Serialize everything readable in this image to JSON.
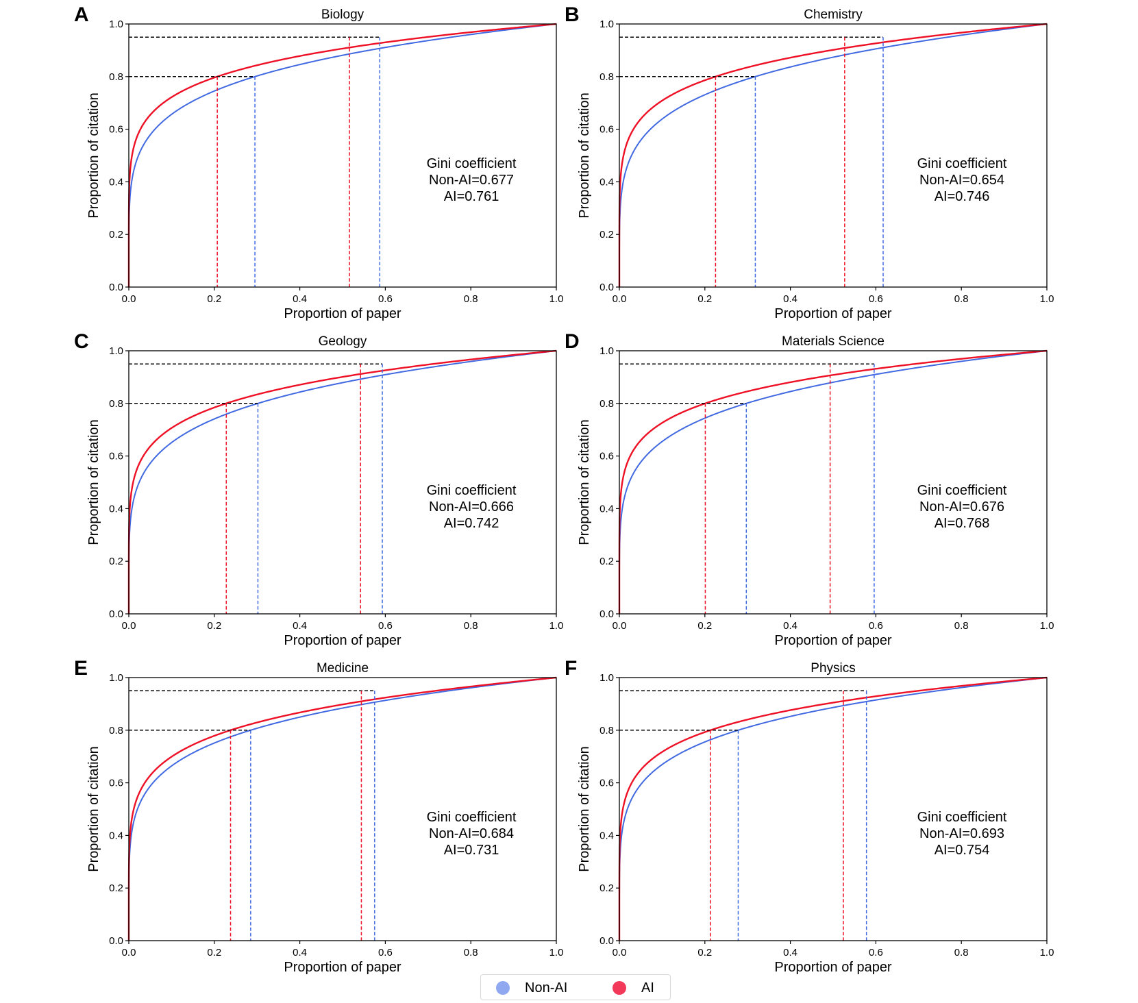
{
  "colors": {
    "non_ai": "#4169e1",
    "ai": "#ee1126",
    "guide": "#000000",
    "legend_non_ai": "#8fa8f0",
    "legend_ai": "#f2395a"
  },
  "legend": {
    "non_ai_label": "Non-AI",
    "ai_label": "AI"
  },
  "chart_data": [
    {
      "type": "line",
      "panel": "A",
      "title": "Biology",
      "xlabel": "Proportion of paper",
      "ylabel": "Proportion of citation",
      "xlim": [
        0,
        1
      ],
      "ylim": [
        0,
        1
      ],
      "xticks": [
        "0.0",
        "0.2",
        "0.4",
        "0.6",
        "0.8",
        "1.0"
      ],
      "yticks": [
        "0.0",
        "0.2",
        "0.4",
        "0.6",
        "0.8",
        "1.0"
      ],
      "gini_label": "Gini coefficient",
      "gini_non_ai": "Non-AI=0.677",
      "gini_ai": "AI=0.761",
      "series": [
        {
          "name": "Non-AI",
          "x80": 0.295,
          "x95": 0.587
        },
        {
          "name": "AI",
          "x80": 0.207,
          "x95": 0.516
        }
      ]
    },
    {
      "type": "line",
      "panel": "B",
      "title": "Chemistry",
      "xlabel": "Proportion of paper",
      "ylabel": "Proportion of citation",
      "xlim": [
        0,
        1
      ],
      "ylim": [
        0,
        1
      ],
      "xticks": [
        "0.0",
        "0.2",
        "0.4",
        "0.6",
        "0.8",
        "1.0"
      ],
      "yticks": [
        "0.0",
        "0.2",
        "0.4",
        "0.6",
        "0.8",
        "1.0"
      ],
      "gini_label": "Gini coefficient",
      "gini_non_ai": "Non-AI=0.654",
      "gini_ai": "AI=0.746",
      "series": [
        {
          "name": "Non-AI",
          "x80": 0.318,
          "x95": 0.617
        },
        {
          "name": "AI",
          "x80": 0.225,
          "x95": 0.527
        }
      ]
    },
    {
      "type": "line",
      "panel": "C",
      "title": "Geology",
      "xlabel": "Proportion of paper",
      "ylabel": "Proportion of citation",
      "xlim": [
        0,
        1
      ],
      "ylim": [
        0,
        1
      ],
      "xticks": [
        "0.0",
        "0.2",
        "0.4",
        "0.6",
        "0.8",
        "1.0"
      ],
      "yticks": [
        "0.0",
        "0.2",
        "0.4",
        "0.6",
        "0.8",
        "1.0"
      ],
      "gini_label": "Gini coefficient",
      "gini_non_ai": "Non-AI=0.666",
      "gini_ai": "AI=0.742",
      "series": [
        {
          "name": "Non-AI",
          "x80": 0.302,
          "x95": 0.593
        },
        {
          "name": "AI",
          "x80": 0.228,
          "x95": 0.542
        }
      ]
    },
    {
      "type": "line",
      "panel": "D",
      "title": "Materials Science",
      "xlabel": "Proportion of paper",
      "ylabel": "Proportion of citation",
      "xlim": [
        0,
        1
      ],
      "ylim": [
        0,
        1
      ],
      "xticks": [
        "0.0",
        "0.2",
        "0.4",
        "0.6",
        "0.8",
        "1.0"
      ],
      "yticks": [
        "0.0",
        "0.2",
        "0.4",
        "0.6",
        "0.8",
        "1.0"
      ],
      "gini_label": "Gini coefficient",
      "gini_non_ai": "Non-AI=0.676",
      "gini_ai": "AI=0.768",
      "series": [
        {
          "name": "Non-AI",
          "x80": 0.297,
          "x95": 0.596
        },
        {
          "name": "AI",
          "x80": 0.201,
          "x95": 0.493
        }
      ]
    },
    {
      "type": "line",
      "panel": "E",
      "title": "Medicine",
      "xlabel": "Proportion of paper",
      "ylabel": "Proportion of citation",
      "xlim": [
        0,
        1
      ],
      "ylim": [
        0,
        1
      ],
      "xticks": [
        "0.0",
        "0.2",
        "0.4",
        "0.6",
        "0.8",
        "1.0"
      ],
      "yticks": [
        "0.0",
        "0.2",
        "0.4",
        "0.6",
        "0.8",
        "1.0"
      ],
      "gini_label": "Gini coefficient",
      "gini_non_ai": "Non-AI=0.684",
      "gini_ai": "AI=0.731",
      "series": [
        {
          "name": "Non-AI",
          "x80": 0.285,
          "x95": 0.575
        },
        {
          "name": "AI",
          "x80": 0.238,
          "x95": 0.544
        }
      ]
    },
    {
      "type": "line",
      "panel": "F",
      "title": "Physics",
      "xlabel": "Proportion of paper",
      "ylabel": "Proportion of citation",
      "xlim": [
        0,
        1
      ],
      "ylim": [
        0,
        1
      ],
      "xticks": [
        "0.0",
        "0.2",
        "0.4",
        "0.6",
        "0.8",
        "1.0"
      ],
      "yticks": [
        "0.0",
        "0.2",
        "0.4",
        "0.6",
        "0.8",
        "1.0"
      ],
      "gini_label": "Gini coefficient",
      "gini_non_ai": "Non-AI=0.693",
      "gini_ai": "AI=0.754",
      "series": [
        {
          "name": "Non-AI",
          "x80": 0.278,
          "x95": 0.578
        },
        {
          "name": "AI",
          "x80": 0.213,
          "x95": 0.524
        }
      ]
    }
  ]
}
